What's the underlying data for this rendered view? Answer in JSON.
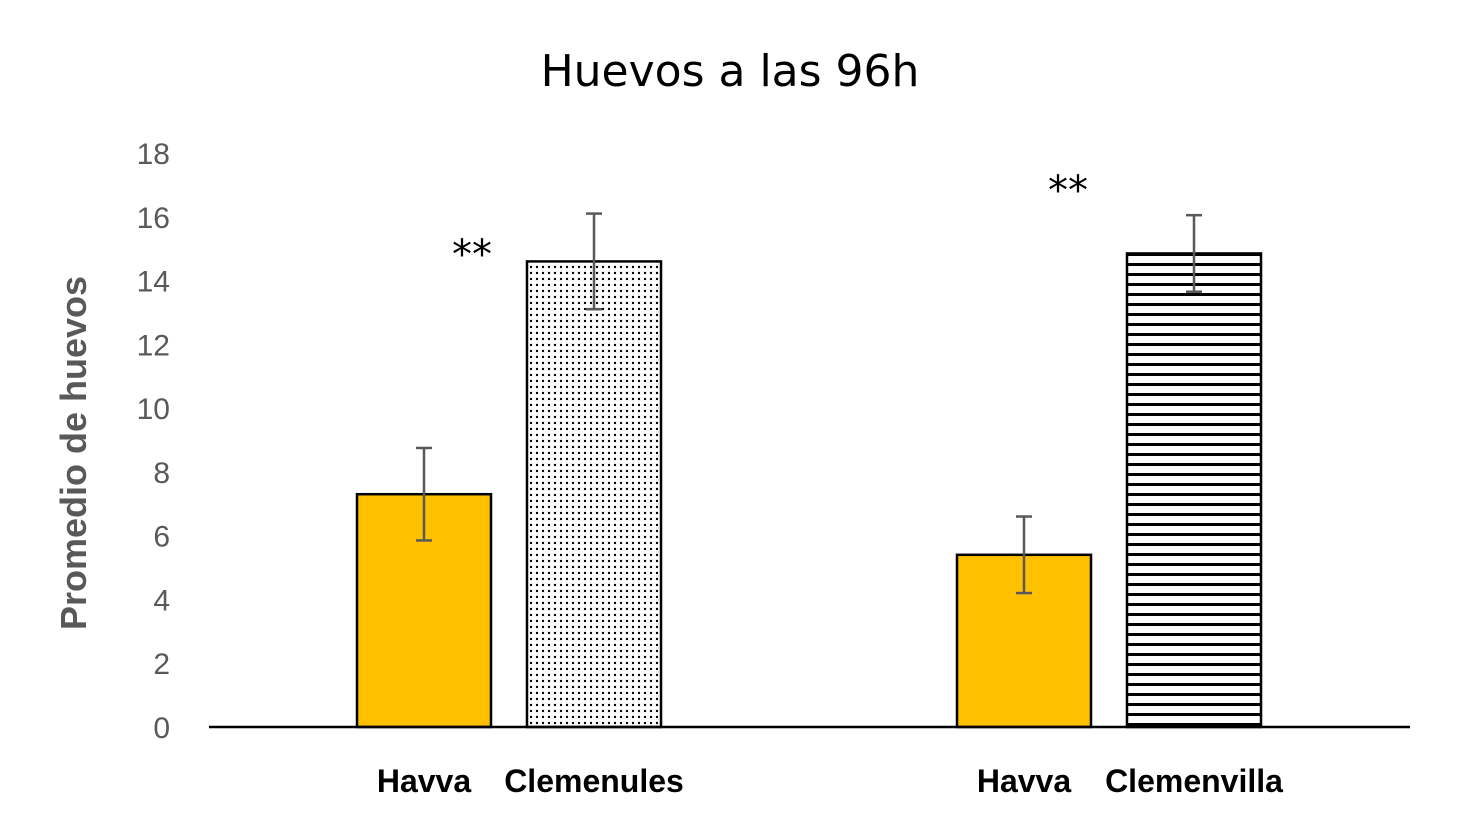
{
  "chart_data": {
    "type": "bar",
    "title": "Huevos a las 96h",
    "xlabel": "",
    "ylabel": "Promedio de huevos",
    "ylim": [
      0,
      18
    ],
    "yticks": [
      0,
      2,
      4,
      6,
      8,
      10,
      12,
      14,
      16,
      18
    ],
    "grid": false,
    "legend": "none",
    "groups": [
      {
        "bars": [
          {
            "label": "Havva",
            "value": 7.3,
            "error": 1.45,
            "fill": "solid",
            "color": "#FFC000"
          },
          {
            "label": "Clemenules",
            "value": 14.6,
            "error": 1.5,
            "fill": "dots",
            "color": "#000000"
          }
        ],
        "significance": "**"
      },
      {
        "bars": [
          {
            "label": "Havva",
            "value": 5.4,
            "error": 1.2,
            "fill": "solid",
            "color": "#FFC000"
          },
          {
            "label": "Clemenvilla",
            "value": 14.85,
            "error": 1.2,
            "fill": "horizontal-lines",
            "color": "#000000"
          }
        ],
        "significance": "**"
      }
    ]
  }
}
